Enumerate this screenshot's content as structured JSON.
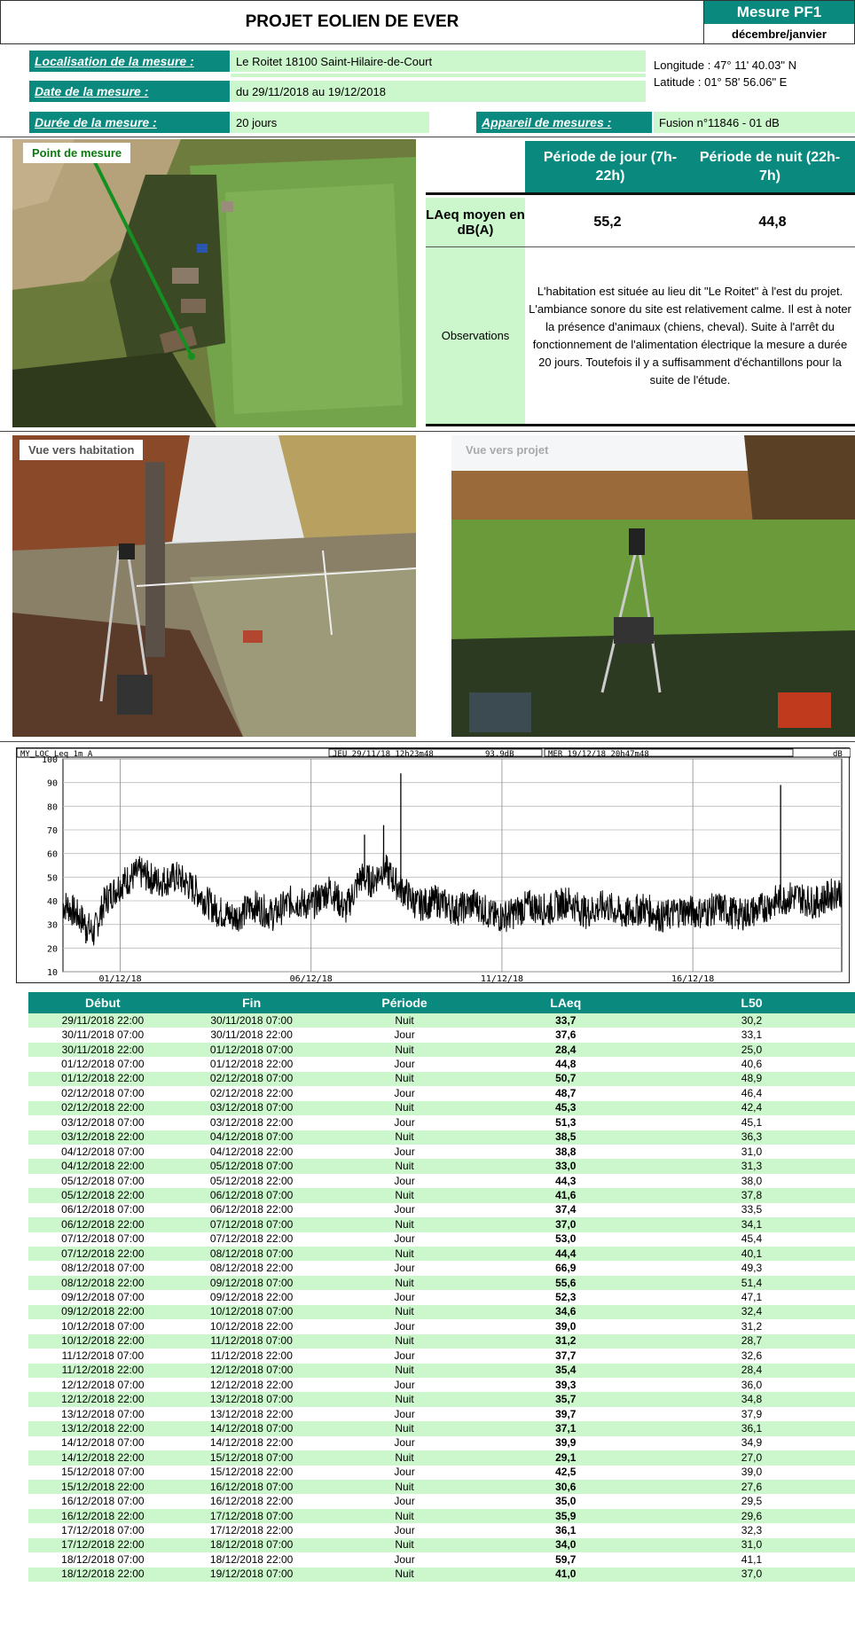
{
  "header": {
    "title": "PROJET EOLIEN DE EVER",
    "badge": "Mesure PF1",
    "season": "décembre/janvier"
  },
  "info": {
    "location_label": "Localisation de la mesure :",
    "location_value": "Le Roitet 18100 Saint-Hilaire-de-Court",
    "date_label": "Date de la mesure :",
    "date_value": "du 29/11/2018 au 19/12/2018",
    "duration_label": "Durée de la mesure :",
    "duration_value": "20 jours",
    "device_label": "Appareil de mesures :",
    "device_value": "Fusion n°11846 - 01 dB",
    "longitude": "Longitude : 47° 11' 40.03\" N",
    "latitude": "Latitude : 01° 58' 56.06\" E"
  },
  "photos": {
    "aerial_label": "Point de mesure",
    "view_home_label": "Vue vers habitation",
    "view_project_label": "Vue vers projet"
  },
  "results": {
    "day_header": "Période de jour (7h-22h)",
    "night_header": "Période de nuit (22h-7h)",
    "laeq_label": "LAeq moyen en dB(A)",
    "day_value": "55,2",
    "night_value": "44,8",
    "obs_label": "Observations",
    "obs_text": "L'habitation est située au lieu dit \"Le Roitet\" à l'est du projet. L'ambiance sonore du site est relativement calme. Il est à noter la présence d'animaux (chiens, cheval). Suite à l'arrêt du fonctionnement de l'alimentation électrique la mesure a durée 20 jours. Toutefois il y a suffisamment d'échantillons pour la suite de l'étude."
  },
  "chart_data": {
    "type": "line",
    "header_left": "MY_LOC   Leq 1m  A",
    "header_start": "JEU 29/11/18 12h23m48",
    "header_level": "93.9dB",
    "header_end": "MER 19/12/18 20h47m48",
    "header_unit": "dB",
    "ylim": [
      10,
      100
    ],
    "yticks": [
      10,
      20,
      30,
      40,
      50,
      60,
      70,
      80,
      90,
      100
    ],
    "xticks": [
      "01/12/18",
      "06/12/18",
      "11/12/18",
      "16/12/18"
    ],
    "xlim_days": [
      29.5,
      49.9
    ],
    "xtick_days": [
      31,
      36,
      41,
      46
    ],
    "series_approx": [
      {
        "day": 29.6,
        "value": 38
      },
      {
        "day": 30.0,
        "value": 32
      },
      {
        "day": 30.3,
        "value": 26
      },
      {
        "day": 30.6,
        "value": 40
      },
      {
        "day": 31.0,
        "value": 47
      },
      {
        "day": 31.5,
        "value": 52
      },
      {
        "day": 32.0,
        "value": 48
      },
      {
        "day": 32.5,
        "value": 50
      },
      {
        "day": 33.0,
        "value": 44
      },
      {
        "day": 33.5,
        "value": 36
      },
      {
        "day": 34.0,
        "value": 33
      },
      {
        "day": 34.5,
        "value": 38
      },
      {
        "day": 35.0,
        "value": 34
      },
      {
        "day": 35.5,
        "value": 40
      },
      {
        "day": 36.0,
        "value": 38
      },
      {
        "day": 36.5,
        "value": 45
      },
      {
        "day": 36.9,
        "value": 36
      },
      {
        "day": 37.3,
        "value": 50
      },
      {
        "day": 37.6,
        "value": 48
      },
      {
        "day": 37.9,
        "value": 54
      },
      {
        "day": 38.3,
        "value": 46
      },
      {
        "day": 38.8,
        "value": 38
      },
      {
        "day": 39.3,
        "value": 40
      },
      {
        "day": 39.8,
        "value": 36
      },
      {
        "day": 40.3,
        "value": 39
      },
      {
        "day": 40.8,
        "value": 33
      },
      {
        "day": 41.2,
        "value": 34
      },
      {
        "day": 41.7,
        "value": 38
      },
      {
        "day": 42.2,
        "value": 36
      },
      {
        "day": 42.7,
        "value": 40
      },
      {
        "day": 43.2,
        "value": 35
      },
      {
        "day": 43.7,
        "value": 38
      },
      {
        "day": 44.2,
        "value": 34
      },
      {
        "day": 44.7,
        "value": 37
      },
      {
        "day": 45.2,
        "value": 33
      },
      {
        "day": 45.7,
        "value": 36
      },
      {
        "day": 46.2,
        "value": 35
      },
      {
        "day": 46.7,
        "value": 37
      },
      {
        "day": 47.2,
        "value": 34
      },
      {
        "day": 47.7,
        "value": 36
      },
      {
        "day": 48.2,
        "value": 40
      },
      {
        "day": 48.7,
        "value": 42
      },
      {
        "day": 49.2,
        "value": 39
      },
      {
        "day": 49.8,
        "value": 44
      }
    ],
    "peaks": [
      {
        "day": 38.35,
        "value": 93.9
      },
      {
        "day": 48.3,
        "value": 89
      },
      {
        "day": 37.9,
        "value": 72
      },
      {
        "day": 37.4,
        "value": 68
      },
      {
        "day": 30.1,
        "value": 22
      }
    ]
  },
  "table": {
    "headers": [
      "Début",
      "Fin",
      "Période",
      "LAeq",
      "L50"
    ],
    "rows": [
      [
        "29/11/2018 22:00",
        "30/11/2018 07:00",
        "Nuit",
        "33,7",
        "30,2"
      ],
      [
        "30/11/2018 07:00",
        "30/11/2018 22:00",
        "Jour",
        "37,6",
        "33,1"
      ],
      [
        "30/11/2018 22:00",
        "01/12/2018 07:00",
        "Nuit",
        "28,4",
        "25,0"
      ],
      [
        "01/12/2018 07:00",
        "01/12/2018 22:00",
        "Jour",
        "44,8",
        "40,6"
      ],
      [
        "01/12/2018 22:00",
        "02/12/2018 07:00",
        "Nuit",
        "50,7",
        "48,9"
      ],
      [
        "02/12/2018 07:00",
        "02/12/2018 22:00",
        "Jour",
        "48,7",
        "46,4"
      ],
      [
        "02/12/2018 22:00",
        "03/12/2018 07:00",
        "Nuit",
        "45,3",
        "42,4"
      ],
      [
        "03/12/2018 07:00",
        "03/12/2018 22:00",
        "Jour",
        "51,3",
        "45,1"
      ],
      [
        "03/12/2018 22:00",
        "04/12/2018 07:00",
        "Nuit",
        "38,5",
        "36,3"
      ],
      [
        "04/12/2018 07:00",
        "04/12/2018 22:00",
        "Jour",
        "38,8",
        "31,0"
      ],
      [
        "04/12/2018 22:00",
        "05/12/2018 07:00",
        "Nuit",
        "33,0",
        "31,3"
      ],
      [
        "05/12/2018 07:00",
        "05/12/2018 22:00",
        "Jour",
        "44,3",
        "38,0"
      ],
      [
        "05/12/2018 22:00",
        "06/12/2018 07:00",
        "Nuit",
        "41,6",
        "37,8"
      ],
      [
        "06/12/2018 07:00",
        "06/12/2018 22:00",
        "Jour",
        "37,4",
        "33,5"
      ],
      [
        "06/12/2018 22:00",
        "07/12/2018 07:00",
        "Nuit",
        "37,0",
        "34,1"
      ],
      [
        "07/12/2018 07:00",
        "07/12/2018 22:00",
        "Jour",
        "53,0",
        "45,4"
      ],
      [
        "07/12/2018 22:00",
        "08/12/2018 07:00",
        "Nuit",
        "44,4",
        "40,1"
      ],
      [
        "08/12/2018 07:00",
        "08/12/2018 22:00",
        "Jour",
        "66,9",
        "49,3"
      ],
      [
        "08/12/2018 22:00",
        "09/12/2018 07:00",
        "Nuit",
        "55,6",
        "51,4"
      ],
      [
        "09/12/2018 07:00",
        "09/12/2018 22:00",
        "Jour",
        "52,3",
        "47,1"
      ],
      [
        "09/12/2018 22:00",
        "10/12/2018 07:00",
        "Nuit",
        "34,6",
        "32,4"
      ],
      [
        "10/12/2018 07:00",
        "10/12/2018 22:00",
        "Jour",
        "39,0",
        "31,2"
      ],
      [
        "10/12/2018 22:00",
        "11/12/2018 07:00",
        "Nuit",
        "31,2",
        "28,7"
      ],
      [
        "11/12/2018 07:00",
        "11/12/2018 22:00",
        "Jour",
        "37,7",
        "32,6"
      ],
      [
        "11/12/2018 22:00",
        "12/12/2018 07:00",
        "Nuit",
        "35,4",
        "28,4"
      ],
      [
        "12/12/2018 07:00",
        "12/12/2018 22:00",
        "Jour",
        "39,3",
        "36,0"
      ],
      [
        "12/12/2018 22:00",
        "13/12/2018 07:00",
        "Nuit",
        "35,7",
        "34,8"
      ],
      [
        "13/12/2018 07:00",
        "13/12/2018 22:00",
        "Jour",
        "39,7",
        "37,9"
      ],
      [
        "13/12/2018 22:00",
        "14/12/2018 07:00",
        "Nuit",
        "37,1",
        "36,1"
      ],
      [
        "14/12/2018 07:00",
        "14/12/2018 22:00",
        "Jour",
        "39,9",
        "34,9"
      ],
      [
        "14/12/2018 22:00",
        "15/12/2018 07:00",
        "Nuit",
        "29,1",
        "27,0"
      ],
      [
        "15/12/2018 07:00",
        "15/12/2018 22:00",
        "Jour",
        "42,5",
        "39,0"
      ],
      [
        "15/12/2018 22:00",
        "16/12/2018 07:00",
        "Nuit",
        "30,6",
        "27,6"
      ],
      [
        "16/12/2018 07:00",
        "16/12/2018 22:00",
        "Jour",
        "35,0",
        "29,5"
      ],
      [
        "16/12/2018 22:00",
        "17/12/2018 07:00",
        "Nuit",
        "35,9",
        "29,6"
      ],
      [
        "17/12/2018 07:00",
        "17/12/2018 22:00",
        "Jour",
        "36,1",
        "32,3"
      ],
      [
        "17/12/2018 22:00",
        "18/12/2018 07:00",
        "Nuit",
        "34,0",
        "31,0"
      ],
      [
        "18/12/2018 07:00",
        "18/12/2018 22:00",
        "Jour",
        "59,7",
        "41,1"
      ],
      [
        "18/12/2018 22:00",
        "19/12/2018 07:00",
        "Nuit",
        "41,0",
        "37,0"
      ]
    ]
  }
}
